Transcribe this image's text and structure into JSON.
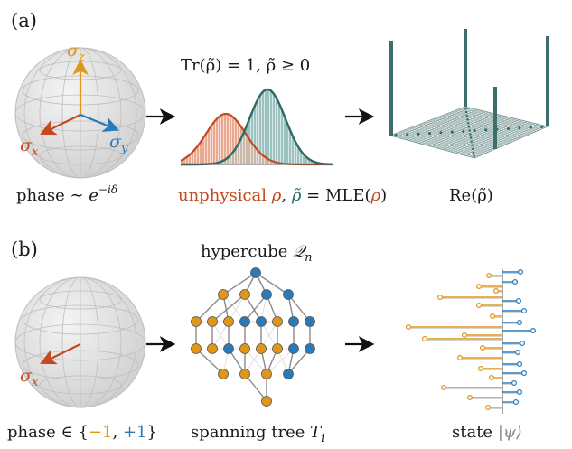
{
  "panels": [
    {
      "label": "(a)",
      "bloch_axes": {
        "z": "σ",
        "z_sub": "z",
        "x": "σ",
        "x_sub": "x",
        "y": "σ",
        "y_sub": "y"
      },
      "caption_left": {
        "prefix": "phase ∼ ",
        "base": "e",
        "exponent": "−iδ"
      },
      "constraint": "Tr(ρ̃) = 1, ρ̃ ≥ 0",
      "caption_middle": {
        "unphysical": "unphysical",
        "rho": "ρ",
        "comma": ",",
        "rho_tilde": "ρ̃",
        "eq": "= MLE(",
        "rho2": "ρ",
        "close": ")"
      },
      "caption_right": "Re(ρ̃)"
    },
    {
      "label": "(b)",
      "bloch_axes": {
        "x": "σ",
        "x_sub": "x"
      },
      "caption_left": {
        "prefix": "phase ∈ {",
        "minus": "−1",
        "comma": ", ",
        "plus": "+1",
        "suffix": "}"
      },
      "graph_title": {
        "text": "hypercube ",
        "symbol": "𝒬",
        "sub": "n"
      },
      "caption_middle": {
        "text": "spanning tree ",
        "symbol": "T",
        "sub": "i"
      },
      "caption_right": {
        "text": "state ",
        "ket": "|ψ⟩"
      }
    }
  ],
  "colors": {
    "orange": "#e0961a",
    "red": "#c24a1e",
    "blue": "#2a7ab8",
    "teal": "#2d6a68",
    "teal_fill": "#9cc2c0",
    "red_fill": "#e9a88f",
    "grey": "#888888"
  }
}
